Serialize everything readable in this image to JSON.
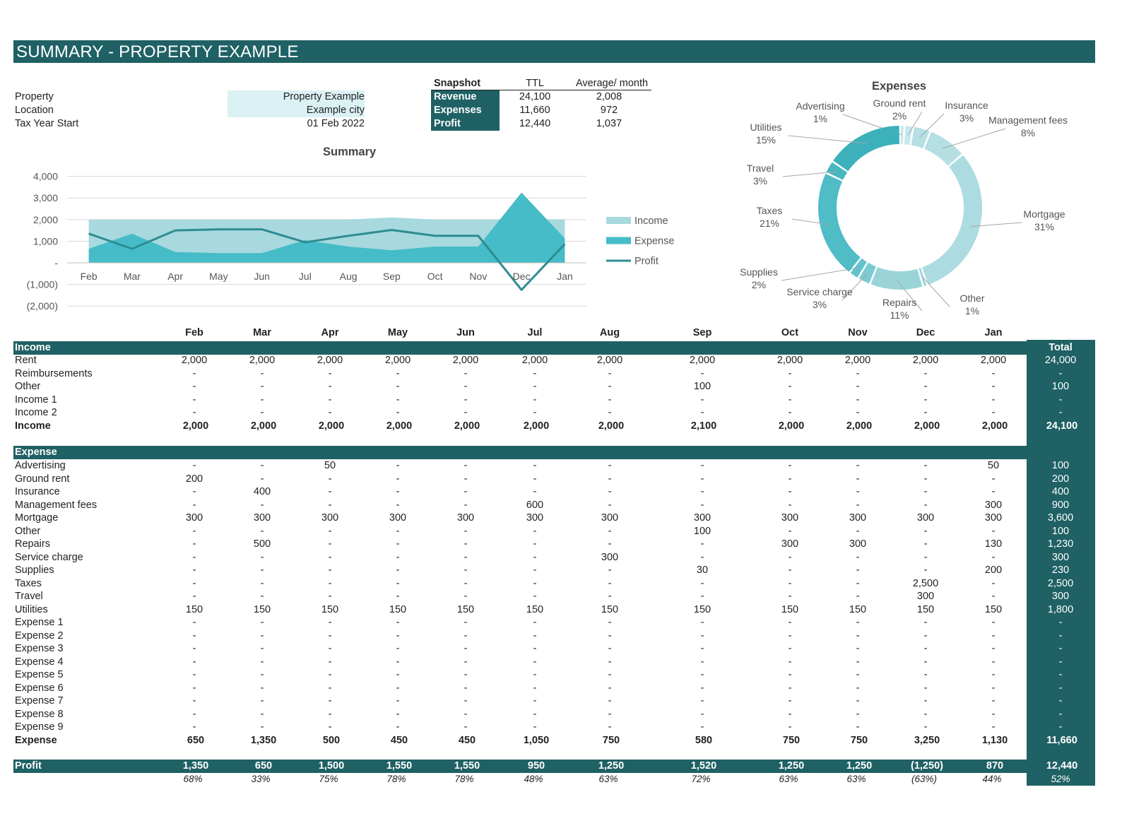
{
  "title": "SUMMARY - PROPERTY EXAMPLE",
  "info": [
    {
      "label": "Property",
      "value": "Property Example"
    },
    {
      "label": "Location",
      "value": "Example city"
    },
    {
      "label": "Tax Year Start",
      "value": "01 Feb 2022"
    }
  ],
  "snapshot": {
    "header": "Snapshot",
    "col_ttl": "TTL",
    "col_avg": "Average/ month",
    "rows": [
      {
        "label": "Revenue",
        "ttl": "24,100",
        "avg": "2,008"
      },
      {
        "label": "Expenses",
        "ttl": "11,660",
        "avg": "972"
      },
      {
        "label": "Profit",
        "ttl": "12,440",
        "avg": "1,037"
      }
    ]
  },
  "colors": {
    "dark": "#1f6164",
    "income": "#a7d9de",
    "expense": "#45bcc7",
    "profit": "#2e8c91",
    "highlight": "#dcf1f3"
  },
  "chart_data": [
    {
      "type": "area",
      "title": "Summary",
      "categories": [
        "Feb",
        "Mar",
        "Apr",
        "May",
        "Jun",
        "Jul",
        "Aug",
        "Sep",
        "Oct",
        "Nov",
        "Dec",
        "Jan"
      ],
      "series": [
        {
          "name": "Income",
          "kind": "area",
          "values": [
            2000,
            2000,
            2000,
            2000,
            2000,
            2000,
            2000,
            2100,
            2000,
            2000,
            2000,
            2000
          ]
        },
        {
          "name": "Expense",
          "kind": "area",
          "values": [
            650,
            1350,
            500,
            450,
            450,
            1050,
            750,
            580,
            750,
            750,
            3250,
            1130
          ]
        },
        {
          "name": "Profit",
          "kind": "line",
          "values": [
            1350,
            650,
            1500,
            1550,
            1550,
            950,
            1250,
            1520,
            1250,
            1250,
            -1250,
            870
          ]
        }
      ],
      "ylim": [
        -2000,
        4000
      ],
      "yticks": [
        4000,
        3000,
        2000,
        1000,
        0,
        -1000,
        -2000
      ],
      "ytick_labels": [
        "4,000",
        "3,000",
        "2,000",
        "1,000",
        "-",
        "(1,000)",
        "(2,000)"
      ],
      "grid": true,
      "legend": "right"
    },
    {
      "type": "pie",
      "title": "Expenses",
      "donut": true,
      "slices": [
        {
          "label": "Advertising",
          "pct": "1%",
          "value": 100
        },
        {
          "label": "Ground rent",
          "pct": "2%",
          "value": 200
        },
        {
          "label": "Insurance",
          "pct": "3%",
          "value": 400
        },
        {
          "label": "Management fees",
          "pct": "8%",
          "value": 900
        },
        {
          "label": "Mortgage",
          "pct": "31%",
          "value": 3600
        },
        {
          "label": "Other",
          "pct": "1%",
          "value": 100
        },
        {
          "label": "Repairs",
          "pct": "11%",
          "value": 1230
        },
        {
          "label": "Service charge",
          "pct": "3%",
          "value": 300
        },
        {
          "label": "Supplies",
          "pct": "2%",
          "value": 230
        },
        {
          "label": "Taxes",
          "pct": "21%",
          "value": 2500
        },
        {
          "label": "Travel",
          "pct": "3%",
          "value": 300
        },
        {
          "label": "Utilities",
          "pct": "15%",
          "value": 1800
        }
      ]
    }
  ],
  "table": {
    "months": [
      "Feb",
      "Mar",
      "Apr",
      "May",
      "Jun",
      "Jul",
      "Aug",
      "Sep",
      "Oct",
      "Nov",
      "Dec",
      "Jan"
    ],
    "total_label": "Total",
    "income": {
      "section": "Income",
      "rows": [
        {
          "label": "Rent",
          "values": [
            "2,000",
            "2,000",
            "2,000",
            "2,000",
            "2,000",
            "2,000",
            "2,000",
            "2,000",
            "2,000",
            "2,000",
            "2,000",
            "2,000"
          ],
          "total": "24,000"
        },
        {
          "label": "Reimbursements",
          "values": [
            "-",
            "-",
            "-",
            "-",
            "-",
            "-",
            "-",
            "-",
            "-",
            "-",
            "-",
            "-"
          ],
          "total": "-"
        },
        {
          "label": "Other",
          "values": [
            "-",
            "-",
            "-",
            "-",
            "-",
            "-",
            "-",
            "100",
            "-",
            "-",
            "-",
            "-"
          ],
          "total": "100"
        },
        {
          "label": "Income 1",
          "values": [
            "-",
            "-",
            "-",
            "-",
            "-",
            "-",
            "-",
            "-",
            "-",
            "-",
            "-",
            "-"
          ],
          "total": "-"
        },
        {
          "label": "Income 2",
          "values": [
            "-",
            "-",
            "-",
            "-",
            "-",
            "-",
            "-",
            "-",
            "-",
            "-",
            "-",
            "-"
          ],
          "total": "-"
        }
      ],
      "total_row": {
        "label": "Income",
        "values": [
          "2,000",
          "2,000",
          "2,000",
          "2,000",
          "2,000",
          "2,000",
          "2,000",
          "2,100",
          "2,000",
          "2,000",
          "2,000",
          "2,000"
        ],
        "total": "24,100"
      }
    },
    "expense": {
      "section": "Expense",
      "rows": [
        {
          "label": "Advertising",
          "values": [
            "-",
            "-",
            "50",
            "-",
            "-",
            "-",
            "-",
            "-",
            "-",
            "-",
            "-",
            "50"
          ],
          "total": "100"
        },
        {
          "label": "Ground rent",
          "values": [
            "200",
            "-",
            "-",
            "-",
            "-",
            "-",
            "-",
            "-",
            "-",
            "-",
            "-",
            "-"
          ],
          "total": "200"
        },
        {
          "label": "Insurance",
          "values": [
            "-",
            "400",
            "-",
            "-",
            "-",
            "-",
            "-",
            "-",
            "-",
            "-",
            "-",
            "-"
          ],
          "total": "400"
        },
        {
          "label": "Management fees",
          "values": [
            "-",
            "-",
            "-",
            "-",
            "-",
            "600",
            "-",
            "-",
            "-",
            "-",
            "-",
            "300"
          ],
          "total": "900"
        },
        {
          "label": "Mortgage",
          "values": [
            "300",
            "300",
            "300",
            "300",
            "300",
            "300",
            "300",
            "300",
            "300",
            "300",
            "300",
            "300"
          ],
          "total": "3,600"
        },
        {
          "label": "Other",
          "values": [
            "-",
            "-",
            "-",
            "-",
            "-",
            "-",
            "-",
            "100",
            "-",
            "-",
            "-",
            "-"
          ],
          "total": "100"
        },
        {
          "label": "Repairs",
          "values": [
            "-",
            "500",
            "-",
            "-",
            "-",
            "-",
            "-",
            "-",
            "300",
            "300",
            "-",
            "130"
          ],
          "total": "1,230"
        },
        {
          "label": "Service charge",
          "values": [
            "-",
            "-",
            "-",
            "-",
            "-",
            "-",
            "300",
            "-",
            "-",
            "-",
            "-",
            "-"
          ],
          "total": "300"
        },
        {
          "label": "Supplies",
          "values": [
            "-",
            "-",
            "-",
            "-",
            "-",
            "-",
            "-",
            "30",
            "-",
            "-",
            "-",
            "200"
          ],
          "total": "230"
        },
        {
          "label": "Taxes",
          "values": [
            "-",
            "-",
            "-",
            "-",
            "-",
            "-",
            "-",
            "-",
            "-",
            "-",
            "2,500",
            "-"
          ],
          "total": "2,500"
        },
        {
          "label": "Travel",
          "values": [
            "-",
            "-",
            "-",
            "-",
            "-",
            "-",
            "-",
            "-",
            "-",
            "-",
            "300",
            "-"
          ],
          "total": "300"
        },
        {
          "label": "Utilities",
          "values": [
            "150",
            "150",
            "150",
            "150",
            "150",
            "150",
            "150",
            "150",
            "150",
            "150",
            "150",
            "150"
          ],
          "total": "1,800"
        },
        {
          "label": "Expense 1",
          "values": [
            "-",
            "-",
            "-",
            "-",
            "-",
            "-",
            "-",
            "-",
            "-",
            "-",
            "-",
            "-"
          ],
          "total": "-"
        },
        {
          "label": "Expense 2",
          "values": [
            "-",
            "-",
            "-",
            "-",
            "-",
            "-",
            "-",
            "-",
            "-",
            "-",
            "-",
            "-"
          ],
          "total": "-"
        },
        {
          "label": "Expense 3",
          "values": [
            "-",
            "-",
            "-",
            "-",
            "-",
            "-",
            "-",
            "-",
            "-",
            "-",
            "-",
            "-"
          ],
          "total": "-"
        },
        {
          "label": "Expense 4",
          "values": [
            "-",
            "-",
            "-",
            "-",
            "-",
            "-",
            "-",
            "-",
            "-",
            "-",
            "-",
            "-"
          ],
          "total": "-"
        },
        {
          "label": "Expense 5",
          "values": [
            "-",
            "-",
            "-",
            "-",
            "-",
            "-",
            "-",
            "-",
            "-",
            "-",
            "-",
            "-"
          ],
          "total": "-"
        },
        {
          "label": "Expense 6",
          "values": [
            "-",
            "-",
            "-",
            "-",
            "-",
            "-",
            "-",
            "-",
            "-",
            "-",
            "-",
            "-"
          ],
          "total": "-"
        },
        {
          "label": "Expense 7",
          "values": [
            "-",
            "-",
            "-",
            "-",
            "-",
            "-",
            "-",
            "-",
            "-",
            "-",
            "-",
            "-"
          ],
          "total": "-"
        },
        {
          "label": "Expense 8",
          "values": [
            "-",
            "-",
            "-",
            "-",
            "-",
            "-",
            "-",
            "-",
            "-",
            "-",
            "-",
            "-"
          ],
          "total": "-"
        },
        {
          "label": "Expense 9",
          "values": [
            "-",
            "-",
            "-",
            "-",
            "-",
            "-",
            "-",
            "-",
            "-",
            "-",
            "-",
            "-"
          ],
          "total": "-"
        }
      ],
      "total_row": {
        "label": "Expense",
        "values": [
          "650",
          "1,350",
          "500",
          "450",
          "450",
          "1,050",
          "750",
          "580",
          "750",
          "750",
          "3,250",
          "1,130"
        ],
        "total": "11,660"
      }
    },
    "profit": {
      "label": "Profit",
      "values": [
        "1,350",
        "650",
        "1,500",
        "1,550",
        "1,550",
        "950",
        "1,250",
        "1,520",
        "1,250",
        "1,250",
        "(1,250)",
        "870"
      ],
      "total": "12,440",
      "margins": [
        "68%",
        "33%",
        "75%",
        "78%",
        "78%",
        "48%",
        "63%",
        "72%",
        "63%",
        "63%",
        "(63%)",
        "44%"
      ],
      "margin_total": "52%"
    }
  }
}
